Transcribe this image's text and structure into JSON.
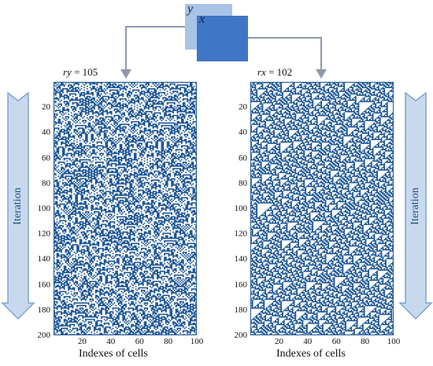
{
  "top_squares": {
    "back_label": "y",
    "front_label": "x"
  },
  "left_panel": {
    "title_var": "ry",
    "title_rest": " = 105",
    "y_ticks": [
      "20",
      "40",
      "60",
      "80",
      "100",
      "120",
      "140",
      "160",
      "180",
      "200"
    ],
    "x_ticks": [
      "20",
      "40",
      "60",
      "80",
      "100"
    ],
    "x_label": "Indexes of cells",
    "rule": 105
  },
  "right_panel": {
    "title_var": "rx",
    "title_rest": " = 102",
    "y_ticks": [
      "20",
      "40",
      "60",
      "80",
      "100",
      "120",
      "140",
      "160",
      "180",
      "200"
    ],
    "x_ticks": [
      "20",
      "40",
      "60",
      "80",
      "100"
    ],
    "x_label": "Indexes of cells",
    "rule": 102
  },
  "side_arrows": {
    "left_label": "Iteration",
    "right_label": "Iteration"
  },
  "colors": {
    "cell": "#1f5796",
    "connector": "#8e9aab",
    "arrow_fill": "#c8d9ee",
    "arrow_stroke": "#7ea3d3",
    "square_back": "#a9c3e6",
    "square_front": "#3f76c6"
  }
}
